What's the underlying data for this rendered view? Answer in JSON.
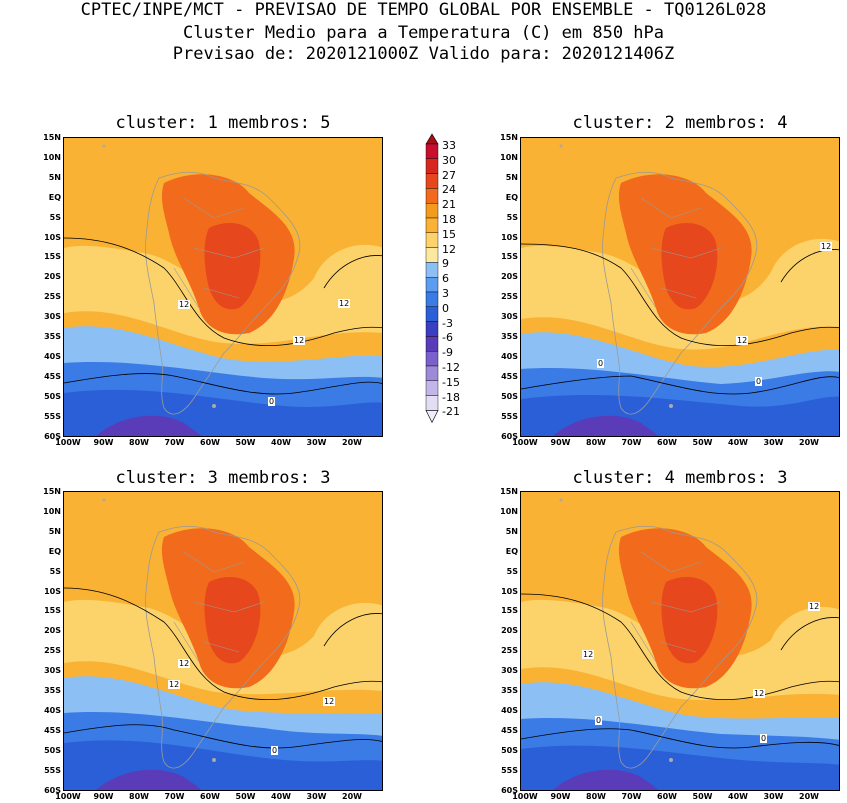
{
  "header": {
    "line1": "CPTEC/INPE/MCT - PREVISAO DE TEMPO GLOBAL POR ENSEMBLE - TQ0126L028",
    "line2": "Cluster Medio para a Temperatura (C) em 850 hPa",
    "line3": "Previsao de: 2020121000Z   Valido para: 2020121406Z"
  },
  "panels": [
    {
      "title": "cluster: 1  membros: 5",
      "contour_labels": [
        "12",
        "12",
        "12",
        "0"
      ]
    },
    {
      "title": "cluster: 2  membros: 4",
      "contour_labels": [
        "12",
        "12",
        "0",
        "0"
      ]
    },
    {
      "title": "cluster: 3  membros: 3",
      "contour_labels": [
        "12",
        "12",
        "12",
        "0"
      ]
    },
    {
      "title": "cluster: 4  membros: 3",
      "contour_labels": [
        "12",
        "12",
        "12",
        "0",
        "0"
      ]
    }
  ],
  "axes": {
    "lat_labels": [
      "15N",
      "10N",
      "5N",
      "EQ",
      "5S",
      "10S",
      "15S",
      "20S",
      "25S",
      "30S",
      "35S",
      "40S",
      "45S",
      "50S",
      "55S",
      "60S"
    ],
    "lon_labels": [
      "100W",
      "90W",
      "80W",
      "70W",
      "60W",
      "50W",
      "40W",
      "30W",
      "20W"
    ]
  },
  "colorbar": {
    "labels": [
      "33",
      "30",
      "27",
      "24",
      "21",
      "18",
      "15",
      "12",
      "9",
      "6",
      "3",
      "0",
      "-3",
      "-6",
      "-9",
      "-12",
      "-15",
      "-18",
      "-21"
    ],
    "colors": [
      "#a50f15",
      "#c8102e",
      "#d8281e",
      "#e6471c",
      "#f26a1b",
      "#f39b1b",
      "#f9b233",
      "#fcd26b",
      "#fde8a0",
      "#8cc0f5",
      "#5b9df0",
      "#3a7be6",
      "#2a5fd8",
      "#3a3fc0",
      "#5a3bb8",
      "#7a60cc",
      "#9d8ad9",
      "#c2b6e8",
      "#e2dcf5"
    ]
  },
  "colors": {
    "warm": "#f9b233",
    "hot": "#f26a1b",
    "hotter": "#e6471c",
    "mild": "#fcd26b",
    "cool": "#8cc0f5",
    "cold": "#3a7be6",
    "colder": "#2a5fd8",
    "coldest": "#5a3bb8"
  }
}
